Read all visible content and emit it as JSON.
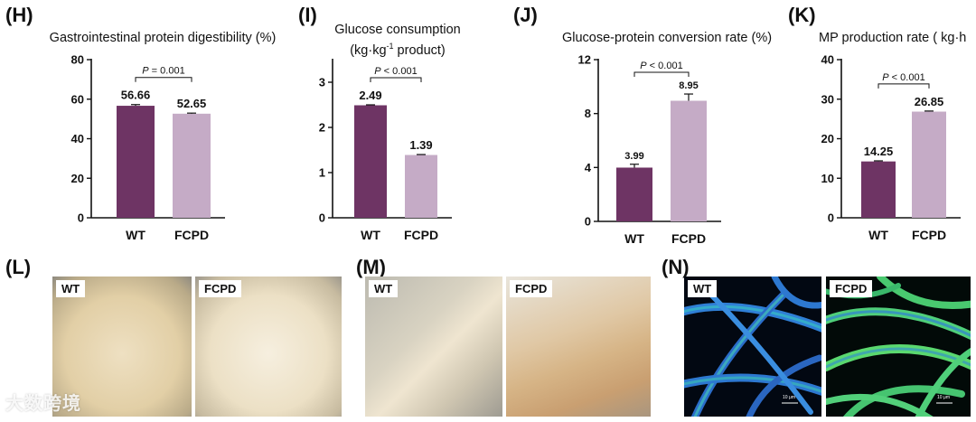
{
  "colors": {
    "wt": "#6e3464",
    "fcpd": "#c5abc6"
  },
  "panels": {
    "H": "(H)",
    "I": "(I)",
    "J": "(J)",
    "K": "(K)",
    "L": "(L)",
    "M": "(M)",
    "N": "(N)"
  },
  "chart_data": [
    {
      "type": "bar",
      "title": "Gastrointestinal protein digestibility (%)",
      "categories": [
        "WT",
        "FCPD"
      ],
      "values": [
        56.66,
        52.65
      ],
      "errors": [
        0.6,
        0.3
      ],
      "value_labels": [
        "56.66",
        "52.65"
      ],
      "ylim": [
        0,
        80
      ],
      "yticks": [
        0,
        20,
        40,
        60,
        80
      ],
      "significance": {
        "p_prefix": "P",
        "p_value": " = 0.001"
      }
    },
    {
      "type": "bar",
      "title_line1": "Glucose consumption",
      "title_line2_a": "(kg·kg",
      "title_line2_sup": "-1",
      "title_line2_b": " product)",
      "categories": [
        "WT",
        "FCPD"
      ],
      "values": [
        2.49,
        1.39
      ],
      "errors": [
        0.01,
        0.01
      ],
      "value_labels": [
        "2.49",
        "1.39"
      ],
      "ylim": [
        0,
        3.5
      ],
      "yticks": [
        0,
        1,
        2,
        3
      ],
      "significance": {
        "p_prefix": "P",
        "p_value": " < 0.001"
      }
    },
    {
      "type": "bar",
      "title": "Glucose-protein conversion rate (%)",
      "categories": [
        "WT",
        "FCPD"
      ],
      "values": [
        3.99,
        8.95
      ],
      "errors": [
        0.25,
        0.5
      ],
      "value_labels": [
        "3.99",
        "8.95"
      ],
      "ylim": [
        0,
        12
      ],
      "yticks": [
        0,
        4,
        8,
        12
      ],
      "significance": {
        "p_prefix": "P",
        "p_value": " < 0.001"
      }
    },
    {
      "type": "bar",
      "title": "MP production rate ( kg·h",
      "categories": [
        "WT",
        "FCPD"
      ],
      "values": [
        14.25,
        26.85
      ],
      "errors": [
        0.15,
        0.15
      ],
      "value_labels": [
        "14.25",
        "26.85"
      ],
      "ylim": [
        0,
        40
      ],
      "yticks": [
        0,
        10,
        20,
        30,
        40
      ],
      "significance": {
        "p_prefix": "P",
        "p_value": " < 0.001"
      }
    }
  ],
  "photos": {
    "L": {
      "wt": "WT",
      "fcpd": "FCPD"
    },
    "M": {
      "wt": "WT",
      "fcpd": "FCPD"
    },
    "N": {
      "wt": "WT",
      "fcpd": "FCPD",
      "scale_wt": "10 μm",
      "scale_fcpd": "10 μm"
    }
  },
  "watermark": "大数跨境"
}
